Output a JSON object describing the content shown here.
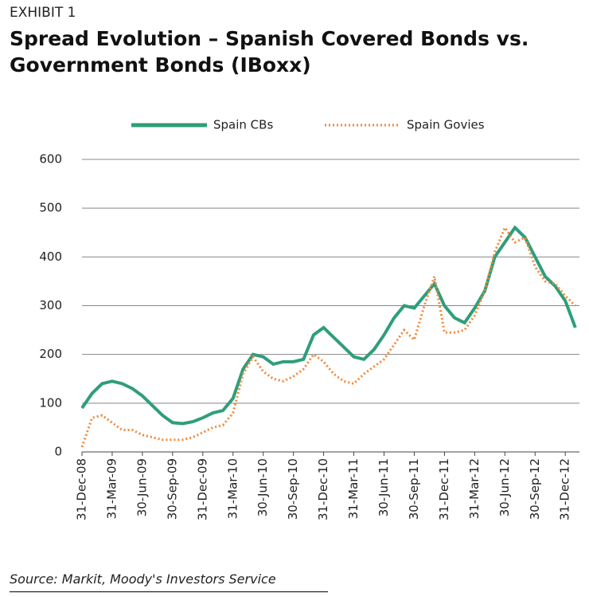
{
  "chart_data": {
    "type": "line",
    "exhibit": "EXHIBIT 1",
    "title": "Spread Evolution – Spanish Covered Bonds vs. Government Bonds (IBoxx)",
    "source": "Source: Markit, Moody's Investors Service",
    "categories": [
      "31-Dec-08",
      null,
      null,
      "31-Mar-09",
      null,
      null,
      "30-Jun-09",
      null,
      null,
      "30-Sep-09",
      null,
      null,
      "31-Dec-09",
      null,
      null,
      "31-Mar-10",
      null,
      null,
      "30-Jun-10",
      null,
      null,
      "30-Sep-10",
      null,
      null,
      "31-Dec-10",
      null,
      null,
      "31-Mar-11",
      null,
      null,
      "30-Jun-11",
      null,
      null,
      "30-Sep-11",
      null,
      null,
      "31-Dec-11",
      null,
      null,
      "31-Mar-12",
      null,
      null,
      "30-Jun-12",
      null,
      null,
      "30-Sep-12",
      null,
      null,
      "31-Dec-12",
      null
    ],
    "series": [
      {
        "name": "Spain CBs",
        "color": "#2e9e7a",
        "dashed": false,
        "values": [
          90,
          120,
          140,
          145,
          140,
          130,
          115,
          95,
          75,
          60,
          58,
          62,
          70,
          80,
          85,
          110,
          170,
          200,
          195,
          180,
          185,
          185,
          190,
          240,
          255,
          235,
          215,
          195,
          190,
          210,
          240,
          275,
          300,
          295,
          320,
          345,
          300,
          275,
          265,
          295,
          330,
          400,
          430,
          460,
          440,
          400,
          360,
          340,
          310,
          255
        ]
      },
      {
        "name": "Spain Govies",
        "color": "#f0883a",
        "dashed": true,
        "values": [
          10,
          70,
          75,
          60,
          45,
          45,
          35,
          30,
          25,
          25,
          25,
          30,
          40,
          50,
          55,
          80,
          160,
          195,
          165,
          150,
          145,
          155,
          170,
          200,
          185,
          160,
          145,
          140,
          160,
          175,
          190,
          220,
          250,
          230,
          300,
          360,
          245,
          245,
          250,
          280,
          330,
          410,
          460,
          430,
          440,
          380,
          350,
          345,
          320,
          300
        ]
      }
    ],
    "ylim": [
      0,
      600
    ],
    "yticks": [
      0,
      100,
      200,
      300,
      400,
      500,
      600
    ],
    "grid": true
  }
}
